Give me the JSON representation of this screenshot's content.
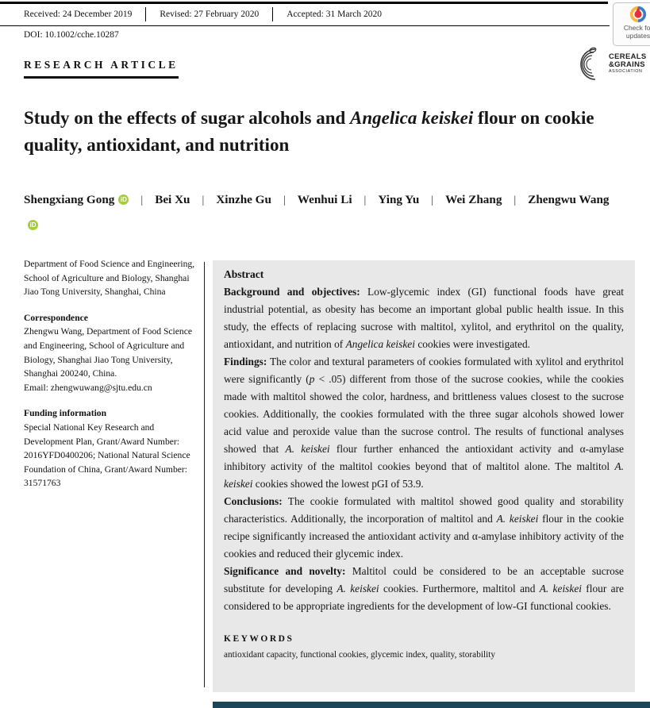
{
  "header": {
    "received": "Received: 24 December 2019",
    "revised": "Revised: 27 February 2020",
    "accepted": "Accepted: 31 March 2020",
    "doi": "DOI: 10.1002/cche.10287",
    "badge": {
      "line1": "Check for",
      "line2": "updates"
    }
  },
  "branding": {
    "article_type": "RESEARCH ARTICLE",
    "logo_line1": "CEREALS",
    "logo_line2": "&GRAINS",
    "logo_line3": "ASSOCIATION"
  },
  "title_segments": [
    {
      "t": "Study on the effects of sugar alcohols and "
    },
    {
      "t": "Angelica keiskei",
      "i": 1
    },
    {
      "t": " flour on cookie quality, antioxidant, and nutrition"
    }
  ],
  "authors": {
    "separator": "|",
    "orcid_label": "iD",
    "list": [
      {
        "name": "Shengxiang Gong",
        "orcid": true
      },
      {
        "name": "Bei Xu",
        "orcid": false
      },
      {
        "name": "Xinzhe Gu",
        "orcid": false
      },
      {
        "name": "Wenhui Li",
        "orcid": false
      },
      {
        "name": "Ying Yu",
        "orcid": false
      },
      {
        "name": "Wei Zhang",
        "orcid": false
      },
      {
        "name": "Zhengwu Wang",
        "orcid": true
      }
    ]
  },
  "sidebar": {
    "affiliation": "Department of Food Science and Engineering, School of Agriculture and Biology, Shanghai Jiao Tong University, Shanghai, China",
    "correspondence_heading": "Correspondence",
    "correspondence": "Zhengwu Wang, Department of Food Science and Engineering, School of Agriculture and Biology, Shanghai Jiao Tong University, Shanghai 200240, China.",
    "email": "Email: zhengwuwang@sjtu.edu.cn",
    "funding_heading": "Funding information",
    "funding": "Special National Key Research and Development Plan, Grant/Award Number: 2016YFD0400206; National Natural Science Foundation of China, Grant/Award Number: 31571763"
  },
  "abstract": {
    "heading": "Abstract",
    "paragraphs": [
      [
        {
          "t": "Background and objectives: ",
          "b": 1
        },
        {
          "t": "Low-glycemic index (GI) functional foods have great industrial potential, as obesity has become an important global public health issue. In this study, the effects of replacing sucrose with maltitol, xylitol, and erythritol on the quality, antioxidant, and nutrition of "
        },
        {
          "t": "Angelica keiskei",
          "i": 1
        },
        {
          "t": " cookies were investigated."
        }
      ],
      [
        {
          "t": "Findings: ",
          "b": 1
        },
        {
          "t": "The color and textural parameters of cookies formulated with xylitol and erythritol were significantly ("
        },
        {
          "t": "p",
          "i": 1
        },
        {
          "t": " < .05) different from those of the sucrose cookies, while the cookies made with maltitol showed the color, hardness, and brittleness values closest to the sucrose cookies. Additionally, the cookies formulated with the three sugar alcohols showed lower acid value and peroxide value than the sucrose control. The results of functional analyses showed that "
        },
        {
          "t": "A. keiskei",
          "i": 1
        },
        {
          "t": " flour further enhanced the antioxidant activity and α-amylase inhibitory activity of the maltitol cookies beyond that of maltitol alone. The maltitol "
        },
        {
          "t": "A. keiskei",
          "i": 1
        },
        {
          "t": " cookies showed the lowest pGI of 53.9."
        }
      ],
      [
        {
          "t": "Conclusions: ",
          "b": 1
        },
        {
          "t": "The cookie formulated with maltitol showed good quality and storability characteristics. Additionally, the incorporation of maltitol and "
        },
        {
          "t": "A. keiskei",
          "i": 1
        },
        {
          "t": " flour in the cookie recipe significantly increased the antioxidant activity and α-amylase inhibitory activity of the cookies and reduced their glycemic index."
        }
      ],
      [
        {
          "t": "Significance and novelty: ",
          "b": 1
        },
        {
          "t": "Maltitol could be considered to be an acceptable sucrose substitute for developing "
        },
        {
          "t": "A. keiskei",
          "i": 1
        },
        {
          "t": " cookies. Furthermore, maltitol and "
        },
        {
          "t": "A. keiskei",
          "i": 1
        },
        {
          "t": " flour are considered to be appropriate ingredients for the development of low-GI functional cookies."
        }
      ]
    ],
    "keywords_heading": "KEYWORDS",
    "keywords": "antioxidant capacity, functional cookies, glycemic index, quality, storability"
  },
  "colors": {
    "orcid_green": "#A6CE39",
    "abstract_bg": "#E8E8E8",
    "footer_bar": "#1A4658",
    "crossmark_red": "#E23138",
    "crossmark_yellow": "#F9B63F",
    "crossmark_blue": "#3D7DBF",
    "rule_black": "#000000"
  }
}
